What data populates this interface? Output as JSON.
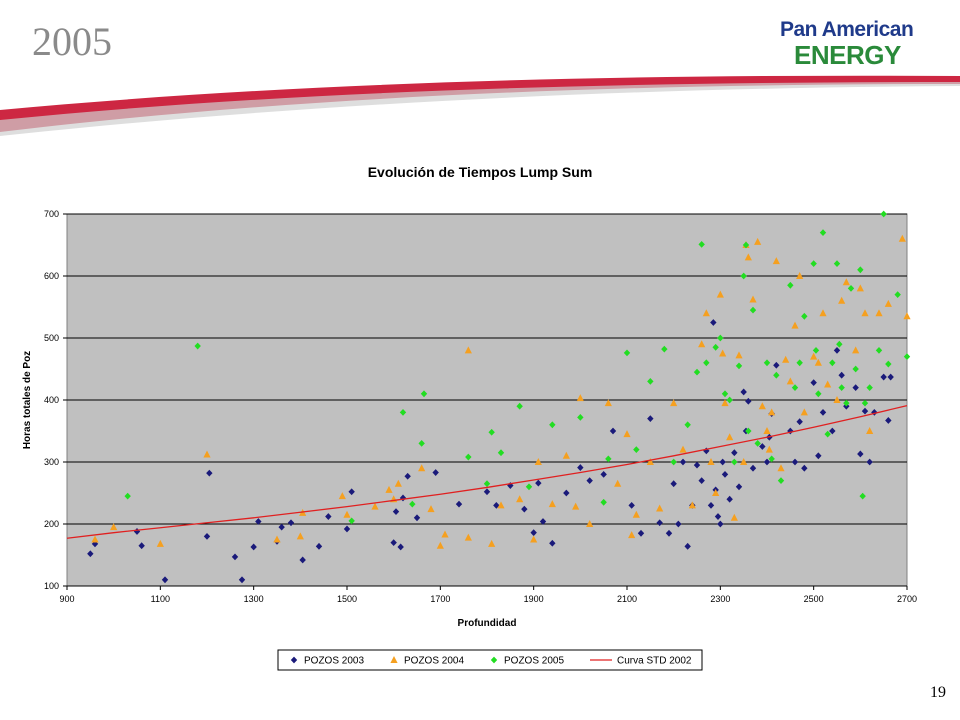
{
  "slide": {
    "title": "2005",
    "logo_line1": "Pan American",
    "logo_line2": "ENERGY",
    "page_number": "19",
    "colors": {
      "logo_blue": "#1f3a8a",
      "logo_green": "#2a8a3a",
      "swoosh_red": "#c8102e"
    }
  },
  "chart_data": {
    "type": "scatter",
    "title": "Evolución de Tiempos Lump Sum",
    "xlabel": "Profundidad",
    "ylabel": "Horas totales de Poz",
    "xlim": [
      900,
      2700
    ],
    "ylim": [
      100,
      700
    ],
    "xticks": [
      900,
      1100,
      1300,
      1500,
      1700,
      1900,
      2100,
      2300,
      2500,
      2700
    ],
    "yticks": [
      100,
      200,
      300,
      400,
      500,
      600,
      700
    ],
    "grid": "horizontal",
    "plot_background": "#c0c0c0",
    "legend_position": "bottom",
    "series": [
      {
        "name": "POZOS 2003",
        "marker": "diamond",
        "color": "#1a1a7a",
        "points": [
          [
            950,
            152
          ],
          [
            960,
            168
          ],
          [
            1050,
            188
          ],
          [
            1060,
            165
          ],
          [
            1110,
            110
          ],
          [
            1200,
            180
          ],
          [
            1205,
            282
          ],
          [
            1260,
            147
          ],
          [
            1275,
            110
          ],
          [
            1300,
            163
          ],
          [
            1310,
            204
          ],
          [
            1350,
            172
          ],
          [
            1360,
            195
          ],
          [
            1380,
            202
          ],
          [
            1405,
            142
          ],
          [
            1440,
            164
          ],
          [
            1460,
            212
          ],
          [
            1500,
            192
          ],
          [
            1510,
            252
          ],
          [
            1600,
            170
          ],
          [
            1605,
            220
          ],
          [
            1615,
            163
          ],
          [
            1620,
            242
          ],
          [
            1630,
            277
          ],
          [
            1650,
            210
          ],
          [
            1690,
            283
          ],
          [
            1740,
            232
          ],
          [
            1800,
            252
          ],
          [
            1820,
            230
          ],
          [
            1850,
            262
          ],
          [
            1880,
            224
          ],
          [
            1900,
            186
          ],
          [
            1910,
            266
          ],
          [
            1920,
            204
          ],
          [
            1940,
            169
          ],
          [
            1970,
            250
          ],
          [
            2000,
            291
          ],
          [
            2020,
            270
          ],
          [
            2050,
            280
          ],
          [
            2070,
            350
          ],
          [
            2110,
            230
          ],
          [
            2130,
            185
          ],
          [
            2150,
            370
          ],
          [
            2170,
            202
          ],
          [
            2190,
            185
          ],
          [
            2200,
            265
          ],
          [
            2210,
            200
          ],
          [
            2220,
            300
          ],
          [
            2230,
            164
          ],
          [
            2240,
            230
          ],
          [
            2250,
            295
          ],
          [
            2260,
            270
          ],
          [
            2270,
            318
          ],
          [
            2280,
            230
          ],
          [
            2285,
            525
          ],
          [
            2290,
            255
          ],
          [
            2295,
            212
          ],
          [
            2300,
            200
          ],
          [
            2305,
            300
          ],
          [
            2310,
            280
          ],
          [
            2320,
            240
          ],
          [
            2330,
            315
          ],
          [
            2340,
            260
          ],
          [
            2350,
            413
          ],
          [
            2355,
            350
          ],
          [
            2360,
            398
          ],
          [
            2370,
            290
          ],
          [
            2390,
            325
          ],
          [
            2400,
            300
          ],
          [
            2405,
            340
          ],
          [
            2410,
            378
          ],
          [
            2420,
            456
          ],
          [
            2450,
            350
          ],
          [
            2460,
            300
          ],
          [
            2470,
            365
          ],
          [
            2480,
            290
          ],
          [
            2500,
            428
          ],
          [
            2510,
            310
          ],
          [
            2520,
            380
          ],
          [
            2540,
            350
          ],
          [
            2550,
            480
          ],
          [
            2560,
            440
          ],
          [
            2570,
            390
          ],
          [
            2590,
            420
          ],
          [
            2600,
            313
          ],
          [
            2610,
            382
          ],
          [
            2620,
            300
          ],
          [
            2630,
            380
          ],
          [
            2650,
            437
          ],
          [
            2660,
            367
          ],
          [
            2665,
            437
          ]
        ]
      },
      {
        "name": "POZOS 2004",
        "marker": "triangle",
        "color": "#f5a020",
        "points": [
          [
            960,
            175
          ],
          [
            1000,
            195
          ],
          [
            1100,
            168
          ],
          [
            1200,
            312
          ],
          [
            1350,
            175
          ],
          [
            1400,
            180
          ],
          [
            1405,
            218
          ],
          [
            1490,
            245
          ],
          [
            1500,
            215
          ],
          [
            1560,
            228
          ],
          [
            1590,
            255
          ],
          [
            1600,
            240
          ],
          [
            1610,
            265
          ],
          [
            1660,
            290
          ],
          [
            1680,
            224
          ],
          [
            1700,
            165
          ],
          [
            1710,
            183
          ],
          [
            1760,
            178
          ],
          [
            1760,
            480
          ],
          [
            1810,
            168
          ],
          [
            1830,
            230
          ],
          [
            1870,
            240
          ],
          [
            1900,
            175
          ],
          [
            1910,
            300
          ],
          [
            1940,
            232
          ],
          [
            1970,
            310
          ],
          [
            1990,
            228
          ],
          [
            2000,
            403
          ],
          [
            2020,
            200
          ],
          [
            2060,
            395
          ],
          [
            2080,
            265
          ],
          [
            2100,
            345
          ],
          [
            2110,
            182
          ],
          [
            2120,
            215
          ],
          [
            2150,
            300
          ],
          [
            2170,
            225
          ],
          [
            2200,
            395
          ],
          [
            2220,
            320
          ],
          [
            2240,
            230
          ],
          [
            2260,
            490
          ],
          [
            2270,
            540
          ],
          [
            2280,
            300
          ],
          [
            2290,
            250
          ],
          [
            2300,
            570
          ],
          [
            2305,
            475
          ],
          [
            2310,
            395
          ],
          [
            2320,
            340
          ],
          [
            2330,
            210
          ],
          [
            2340,
            472
          ],
          [
            2350,
            300
          ],
          [
            2355,
            650
          ],
          [
            2360,
            630
          ],
          [
            2370,
            562
          ],
          [
            2380,
            655
          ],
          [
            2390,
            390
          ],
          [
            2400,
            350
          ],
          [
            2405,
            320
          ],
          [
            2410,
            380
          ],
          [
            2420,
            624
          ],
          [
            2430,
            290
          ],
          [
            2440,
            465
          ],
          [
            2450,
            430
          ],
          [
            2460,
            520
          ],
          [
            2470,
            600
          ],
          [
            2480,
            380
          ],
          [
            2500,
            470
          ],
          [
            2510,
            460
          ],
          [
            2520,
            540
          ],
          [
            2530,
            425
          ],
          [
            2550,
            400
          ],
          [
            2560,
            560
          ],
          [
            2570,
            590
          ],
          [
            2590,
            480
          ],
          [
            2600,
            580
          ],
          [
            2610,
            540
          ],
          [
            2620,
            350
          ],
          [
            2640,
            540
          ],
          [
            2660,
            555
          ],
          [
            2690,
            660
          ],
          [
            2700,
            535
          ]
        ]
      },
      {
        "name": "POZOS 2005",
        "marker": "diamond",
        "color": "#22dd22",
        "points": [
          [
            1030,
            245
          ],
          [
            1180,
            487
          ],
          [
            1510,
            205
          ],
          [
            1620,
            380
          ],
          [
            1640,
            232
          ],
          [
            1660,
            330
          ],
          [
            1665,
            410
          ],
          [
            1760,
            308
          ],
          [
            1800,
            265
          ],
          [
            1810,
            348
          ],
          [
            1830,
            315
          ],
          [
            1870,
            390
          ],
          [
            1890,
            260
          ],
          [
            1940,
            360
          ],
          [
            2000,
            372
          ],
          [
            2050,
            235
          ],
          [
            2060,
            305
          ],
          [
            2100,
            476
          ],
          [
            2120,
            320
          ],
          [
            2150,
            430
          ],
          [
            2180,
            482
          ],
          [
            2200,
            300
          ],
          [
            2230,
            360
          ],
          [
            2250,
            445
          ],
          [
            2260,
            651
          ],
          [
            2270,
            460
          ],
          [
            2290,
            485
          ],
          [
            2300,
            500
          ],
          [
            2310,
            410
          ],
          [
            2320,
            400
          ],
          [
            2330,
            300
          ],
          [
            2340,
            455
          ],
          [
            2350,
            600
          ],
          [
            2355,
            650
          ],
          [
            2360,
            350
          ],
          [
            2370,
            545
          ],
          [
            2380,
            330
          ],
          [
            2400,
            460
          ],
          [
            2410,
            305
          ],
          [
            2420,
            440
          ],
          [
            2430,
            270
          ],
          [
            2450,
            585
          ],
          [
            2460,
            420
          ],
          [
            2470,
            460
          ],
          [
            2480,
            535
          ],
          [
            2500,
            620
          ],
          [
            2505,
            480
          ],
          [
            2510,
            410
          ],
          [
            2520,
            670
          ],
          [
            2530,
            345
          ],
          [
            2540,
            460
          ],
          [
            2550,
            620
          ],
          [
            2555,
            490
          ],
          [
            2560,
            420
          ],
          [
            2570,
            395
          ],
          [
            2580,
            580
          ],
          [
            2590,
            450
          ],
          [
            2600,
            610
          ],
          [
            2605,
            245
          ],
          [
            2610,
            395
          ],
          [
            2620,
            420
          ],
          [
            2640,
            480
          ],
          [
            2650,
            700
          ],
          [
            2660,
            458
          ],
          [
            2680,
            570
          ],
          [
            2700,
            470
          ]
        ]
      },
      {
        "name": "Curva STD 2002",
        "type": "line",
        "color": "#e02020",
        "x": [
          900,
          1000,
          1100,
          1200,
          1300,
          1400,
          1500,
          1600,
          1700,
          1800,
          1900,
          2000,
          2100,
          2200,
          2300,
          2400,
          2500,
          2600,
          2700
        ],
        "y": [
          177,
          186,
          194,
          202,
          210,
          219,
          228,
          238,
          248,
          259,
          271,
          283,
          296,
          310,
          325,
          340,
          356,
          373,
          391
        ]
      }
    ]
  }
}
